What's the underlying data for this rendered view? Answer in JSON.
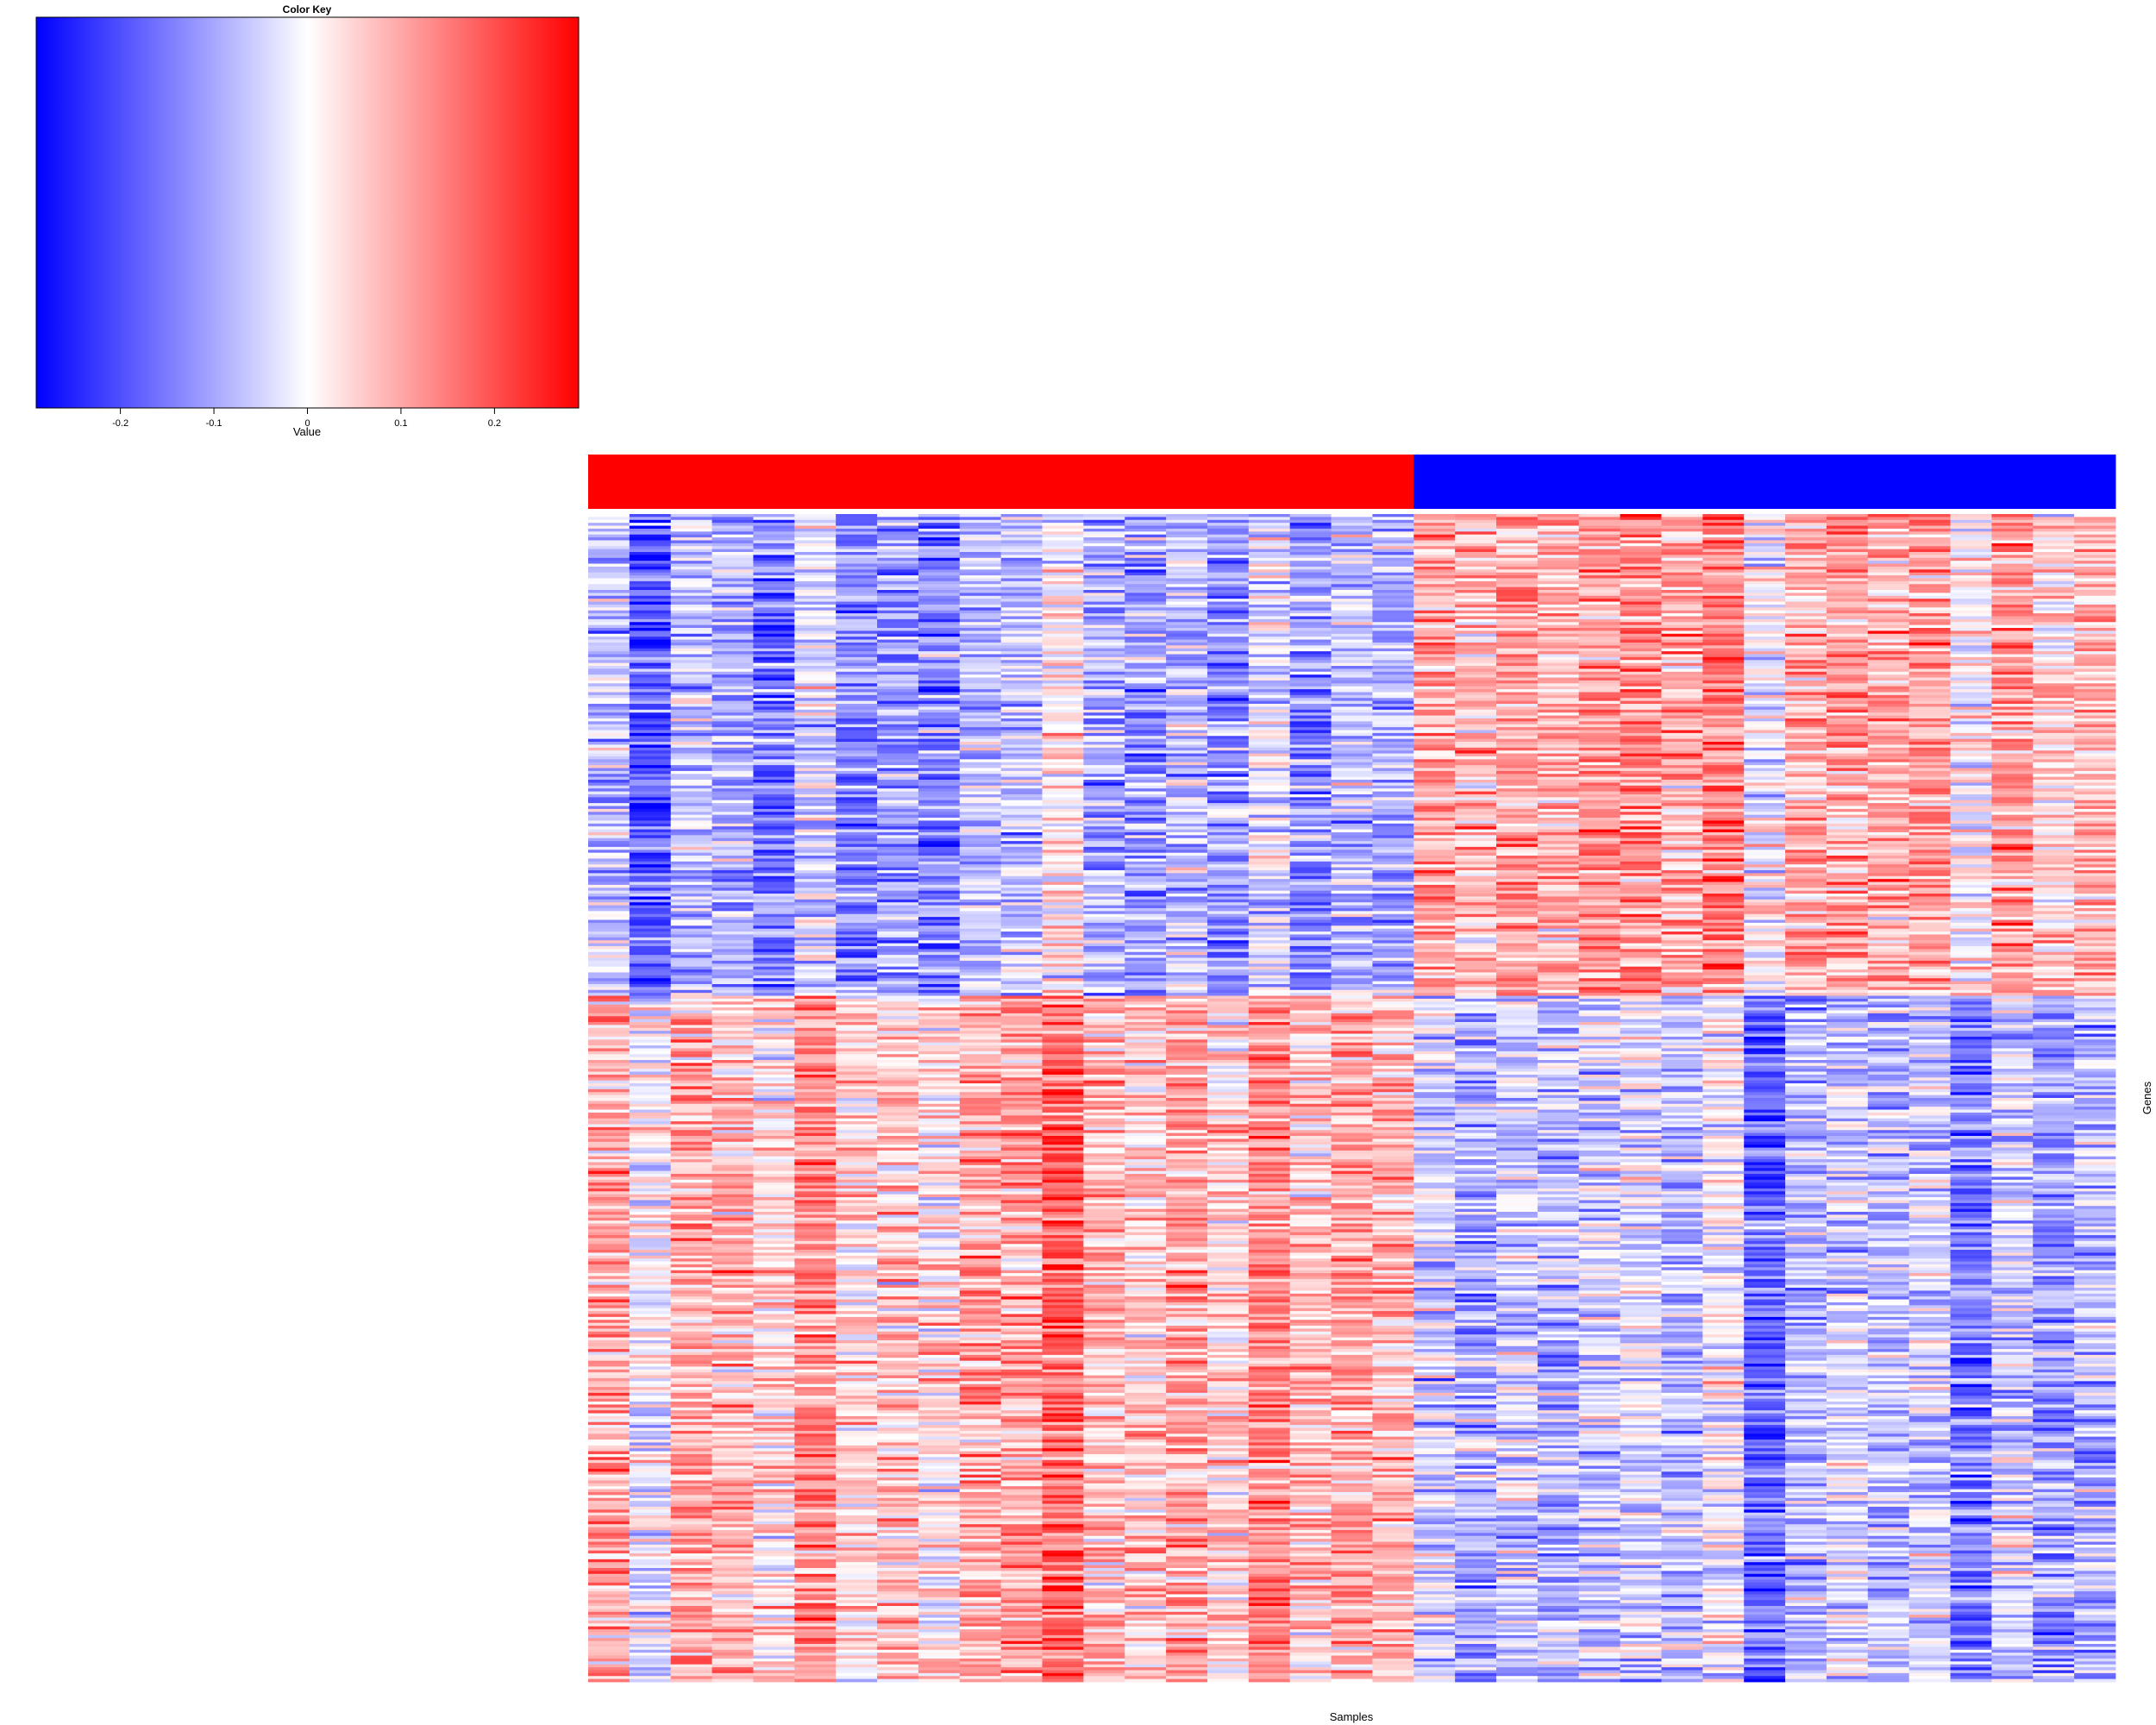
{
  "chart_data": {
    "type": "heatmap",
    "color_key": {
      "title": "Color Key",
      "xlabel": "Value",
      "range": [
        -0.29,
        0.29
      ],
      "ticks": [
        {
          "value": -0.2,
          "label": "-0.2"
        },
        {
          "value": -0.1,
          "label": "-0.1"
        },
        {
          "value": 0,
          "label": "0"
        },
        {
          "value": 0.1,
          "label": "0.1"
        },
        {
          "value": 0.2,
          "label": "0.2"
        }
      ],
      "colors": {
        "low": "#0000ff",
        "mid": "#ffffff",
        "high": "#ff0000"
      }
    },
    "xlabel": "Samples",
    "ylabel": "Genes",
    "n_samples": 37,
    "n_genes": 400,
    "column_groups": [
      {
        "samples": 20,
        "color": "#ff0000"
      },
      {
        "samples": 17,
        "color": "#0000ff"
      }
    ],
    "gene_clusters": [
      {
        "genes": 165,
        "group_a_tendency": -0.09,
        "group_b_tendency": 0.09
      },
      {
        "genes": 235,
        "group_a_tendency": 0.08,
        "group_b_tendency": -0.07
      }
    ],
    "sample_offsets": [
      0.02,
      -0.1,
      0.02,
      0.0,
      -0.05,
      0.05,
      -0.04,
      -0.02,
      -0.05,
      0.02,
      0.03,
      0.1,
      0.0,
      -0.02,
      0.02,
      -0.03,
      0.06,
      -0.02,
      0.02,
      0.0,
      0.02,
      -0.02,
      0.02,
      0.0,
      0.02,
      0.04,
      0.0,
      0.06,
      -0.1,
      0.0,
      0.02,
      0.0,
      0.02,
      -0.08,
      0.02,
      -0.04,
      0.0
    ]
  }
}
